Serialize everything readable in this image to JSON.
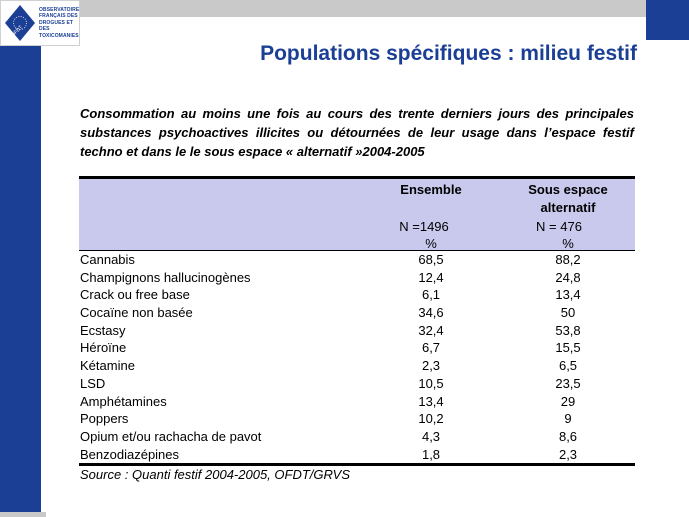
{
  "logo": {
    "emblem_text": "OFDT",
    "lines": [
      "OBSERVATOIRE",
      "FRANÇAIS DES",
      "DROGUES ET DES",
      "TOXICOMANIES"
    ]
  },
  "title": "Populations spécifiques : milieu festif",
  "subtitle": "Consommation au moins une fois au cours des trente derniers jours des principales substances psychoactives illicites ou détournées de leur usage dans l’espace festif techno et dans le le sous espace « alternatif »2004-2005",
  "table": {
    "col1_header": "Ensemble",
    "col2_header_line1": "Sous espace",
    "col2_header_line2": "alternatif",
    "col1_n": "N =1496",
    "col2_n": "N = 476",
    "col1_unit": "%",
    "col2_unit": "%",
    "rows": [
      {
        "name": "Cannabis",
        "ensemble": "68,5",
        "alternatif": "88,2"
      },
      {
        "name": "Champignons hallucinogènes",
        "ensemble": "12,4",
        "alternatif": "24,8"
      },
      {
        "name": "Crack ou free base",
        "ensemble": "6,1",
        "alternatif": "13,4"
      },
      {
        "name": "Cocaïne non basée",
        "ensemble": "34,6",
        "alternatif": "50"
      },
      {
        "name": "Ecstasy",
        "ensemble": "32,4",
        "alternatif": "53,8"
      },
      {
        "name": "Héroïne",
        "ensemble": "6,7",
        "alternatif": "15,5"
      },
      {
        "name": "Kétamine",
        "ensemble": "2,3",
        "alternatif": "6,5"
      },
      {
        "name": "LSD",
        "ensemble": "10,5",
        "alternatif": "23,5"
      },
      {
        "name": "Amphétamines",
        "ensemble": "13,4",
        "alternatif": "29"
      },
      {
        "name": "Poppers",
        "ensemble": "10,2",
        "alternatif": "9"
      },
      {
        "name": "Opium et/ou rachacha de pavot",
        "ensemble": "4,3",
        "alternatif": "8,6"
      },
      {
        "name": "Benzodiazépines",
        "ensemble": "1,8",
        "alternatif": "2,3"
      }
    ]
  },
  "source": "Source : Quanti festif 2004-2005, OFDT/GRVS",
  "colors": {
    "brand_blue": "#1b3f95",
    "header_fill": "#c9c9ee",
    "bar_gray": "#c9c9c9"
  }
}
